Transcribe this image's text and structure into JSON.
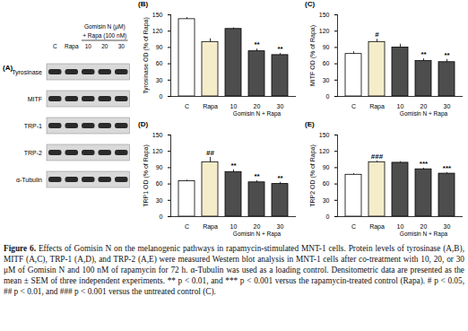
{
  "figure": {
    "panel_a": {
      "panel": "(A)",
      "group_line1": "Gomisin N (μM)",
      "group_line2": "+ Rapa (100 nM)",
      "lanes": [
        "C",
        "Rapa",
        "10",
        "20",
        "30"
      ],
      "rows": [
        "Tyrosinase",
        "MITF",
        "TRP-1",
        "TRP-2",
        "α-Tubulin"
      ]
    },
    "caption": {
      "label": "Figure 6.",
      "text": "Effects of Gomisin N on the melanogenic pathways in rapamycin-stimulated MNT-1 cells. Protein levels of tyrosinase (A,B), MITF (A,C), TRP-1 (A,D), and TRP-2 (A,E) were measured Western blot analysis in MNT-1 cells after co-treatment with 10, 20, or 30 μM of Gomisin N and 100 nM of rapamycin for 72 h. α-Tubulin was used as a loading control. Densitometric data are presented as the mean ± SEM of three independent experiments. ** p < 0.01, and *** p < 0.001 versus the rapamycin-treated control (Rapa). # p < 0.05, ## p < 0.01, and ### p < 0.001 versus the untreated control (C)."
    }
  },
  "chart_data": [
    {
      "type": "bar",
      "panel": "(B)",
      "y_label": "Tyrosinase OD (% of Rapa)",
      "categories": [
        "C",
        "Rapa",
        "10",
        "20",
        "30"
      ],
      "values": [
        142,
        100,
        124,
        83,
        76
      ],
      "errors": [
        3,
        6,
        2,
        4,
        3
      ],
      "significance": [
        null,
        null,
        null,
        "**",
        "**"
      ],
      "colors": [
        "#ffffff",
        "#f5ecca",
        "#4d4d4d",
        "#4d4d4d",
        "#4d4d4d"
      ],
      "group": {
        "label": "Gomisin N + Rapa",
        "categories": [
          "10",
          "20",
          "30"
        ]
      },
      "ylim": [
        0,
        150
      ],
      "yticks": [
        0,
        30,
        60,
        90,
        120,
        150
      ]
    },
    {
      "type": "bar",
      "panel": "(C)",
      "y_label": "MITF OD (% of Rapa)",
      "categories": [
        "C",
        "Rapa",
        "10",
        "20",
        "30"
      ],
      "values": [
        78,
        100,
        90,
        65,
        63
      ],
      "errors": [
        4,
        5,
        6,
        4,
        5
      ],
      "significance": [
        null,
        "#",
        null,
        "**",
        "**"
      ],
      "colors": [
        "#ffffff",
        "#f5ecca",
        "#4d4d4d",
        "#4d4d4d",
        "#4d4d4d"
      ],
      "group": {
        "label": "Gomisin N + Rapa",
        "categories": [
          "10",
          "20",
          "30"
        ]
      },
      "ylim": [
        0,
        150
      ],
      "yticks": [
        0,
        30,
        60,
        90,
        120,
        150
      ]
    },
    {
      "type": "bar",
      "panel": "(D)",
      "y_label": "TRP1 OD (% of Rapa)",
      "categories": [
        "C",
        "Rapa",
        "10",
        "20",
        "30"
      ],
      "values": [
        65,
        100,
        82,
        63,
        60
      ],
      "errors": [
        2,
        9,
        4,
        3,
        3
      ],
      "significance": [
        null,
        "##",
        "**",
        "**",
        "**"
      ],
      "colors": [
        "#ffffff",
        "#f5ecca",
        "#4d4d4d",
        "#4d4d4d",
        "#4d4d4d"
      ],
      "group": {
        "label": "Gomisin N + Rapa",
        "categories": [
          "10",
          "20",
          "30"
        ]
      },
      "ylim": [
        0,
        150
      ],
      "yticks": [
        0,
        30,
        60,
        90,
        120,
        150
      ]
    },
    {
      "type": "bar",
      "panel": "(E)",
      "y_label": "TRP2 OD (% of Rapa)",
      "categories": [
        "C",
        "Rapa",
        "10",
        "20",
        "30"
      ],
      "values": [
        77,
        100,
        99,
        87,
        79
      ],
      "errors": [
        2,
        2,
        2,
        2,
        2
      ],
      "significance": [
        null,
        "###",
        null,
        "***",
        "***"
      ],
      "colors": [
        "#ffffff",
        "#f5ecca",
        "#4d4d4d",
        "#4d4d4d",
        "#4d4d4d"
      ],
      "group": {
        "label": "Gomisin N + Rapa",
        "categories": [
          "10",
          "20",
          "30"
        ]
      },
      "ylim": [
        0,
        150
      ],
      "yticks": [
        0,
        30,
        60,
        90,
        120,
        150
      ]
    }
  ]
}
